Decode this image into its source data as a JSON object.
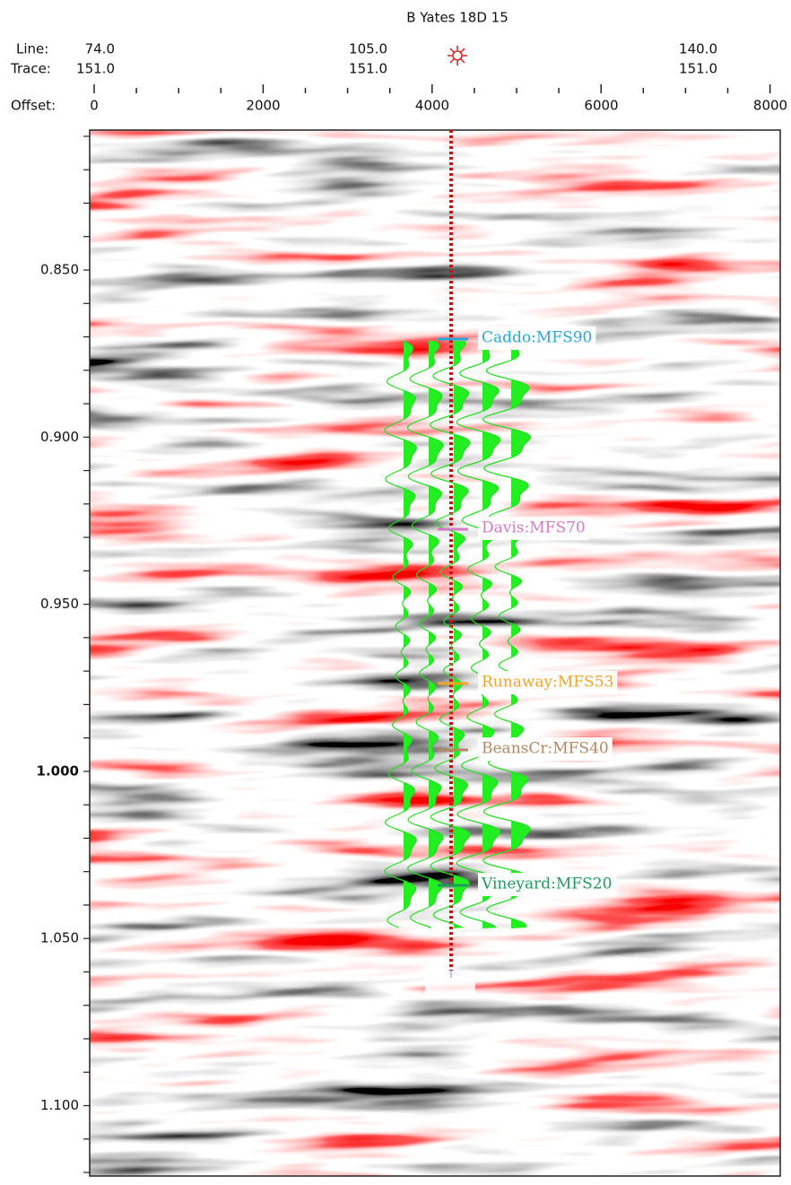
{
  "title": "B Yates 18D 15",
  "header_labels": {
    "line_label": "Line:",
    "trace_label": "Trace:",
    "offset_label": "Offset:"
  },
  "line_values": [
    "74.0",
    "105.0",
    "140.0"
  ],
  "trace_values": [
    "151.0",
    "151.0",
    "151.0"
  ],
  "offset_ticks": [
    "0",
    "2000",
    "4000",
    "6000",
    "8000"
  ],
  "time_ticks": [
    "0.850",
    "0.900",
    "0.950",
    "1.000",
    "1.050",
    "1.100"
  ],
  "horizons": [
    {
      "label": "Caddo:MFS90",
      "color": "#2aa6d8"
    },
    {
      "label": "Davis:MFS70",
      "color": "#d67ac6"
    },
    {
      "label": "Runaway:MFS53",
      "color": "#f0a428"
    },
    {
      "label": "BeansCr:MFS40",
      "color": "#b58863"
    },
    {
      "label": "Vineyard:MFS20",
      "color": "#1f9a5c"
    }
  ]
}
